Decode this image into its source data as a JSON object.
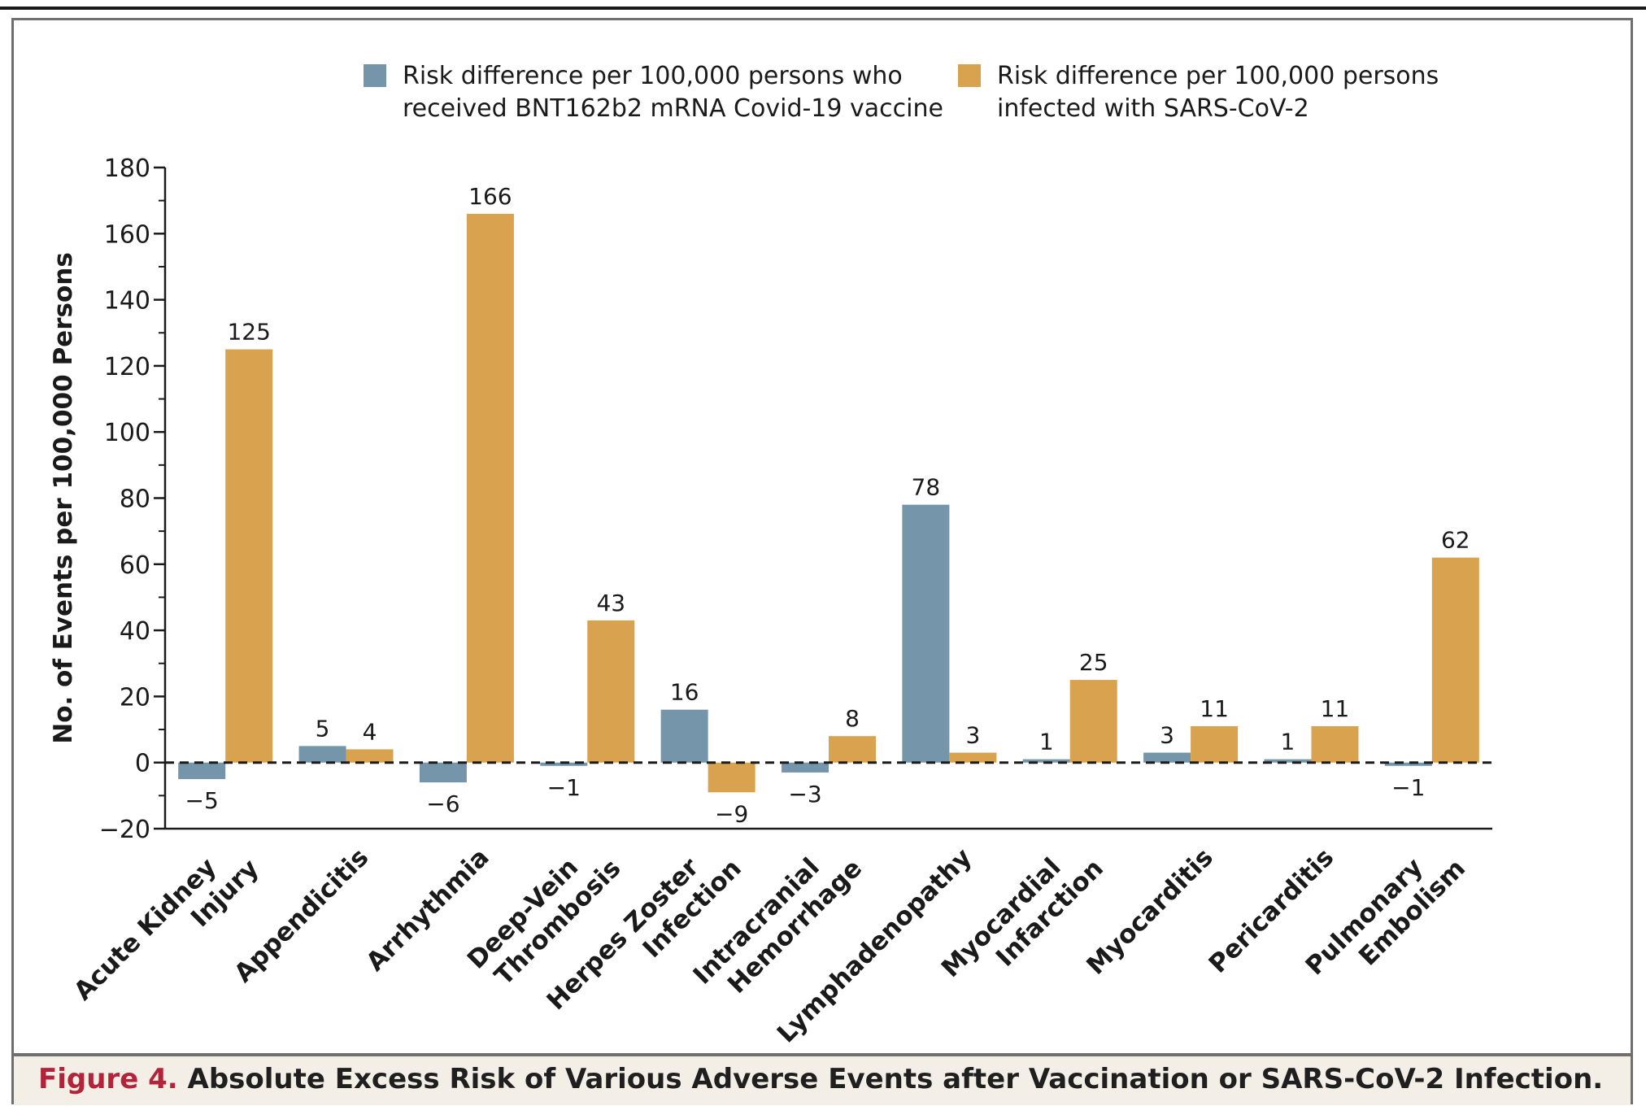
{
  "colors": {
    "vaccine": "#7596aa",
    "infection": "#d8a24e",
    "axis": "#1a1a1a",
    "caption_accent": "#b3243a"
  },
  "caption": {
    "figure_number": "Figure 4.",
    "title": "Absolute Excess Risk of Various Adverse Events after Vaccination or SARS-CoV-2 Infection."
  },
  "chart_data": {
    "type": "bar",
    "ylabel": "No. of Events per 100,000 Persons",
    "ylim": [
      -20,
      180
    ],
    "yticks": [
      -20,
      0,
      20,
      40,
      60,
      80,
      100,
      120,
      140,
      160,
      180
    ],
    "ytick_labels": [
      "−20",
      "0",
      "20",
      "40",
      "60",
      "80",
      "100",
      "120",
      "140",
      "160",
      "180"
    ],
    "zero_line": "dashed",
    "legend_position": "top",
    "categories": [
      [
        "Acute Kidney",
        "Injury"
      ],
      [
        "Appendicitis"
      ],
      [
        "Arrhythmia"
      ],
      [
        "Deep-Vein",
        "Thrombosis"
      ],
      [
        "Herpes Zoster",
        "Infection"
      ],
      [
        "Intracranial",
        "Hemorrhage"
      ],
      [
        "Lymphadenopathy"
      ],
      [
        "Myocardial",
        "Infarction"
      ],
      [
        "Myocarditis"
      ],
      [
        "Pericarditis"
      ],
      [
        "Pulmonary",
        "Embolism"
      ]
    ],
    "series": [
      {
        "name": [
          "Risk difference per 100,000 persons who",
          "received BNT162b2 mRNA Covid-19 vaccine"
        ],
        "values": [
          -5,
          5,
          -6,
          -1,
          16,
          -3,
          78,
          1,
          3,
          1,
          -1
        ],
        "labels": [
          "−5",
          "5",
          "−6",
          "−1",
          "16",
          "−3",
          "78",
          "1",
          "3",
          "1",
          "−1"
        ]
      },
      {
        "name": [
          "Risk difference per 100,000 persons",
          "infected with SARS-CoV-2"
        ],
        "values": [
          125,
          4,
          166,
          43,
          -9,
          8,
          3,
          25,
          11,
          11,
          62
        ],
        "labels": [
          "125",
          "4",
          "166",
          "43",
          "−9",
          "8",
          "3",
          "25",
          "11",
          "11",
          "62"
        ]
      }
    ]
  }
}
